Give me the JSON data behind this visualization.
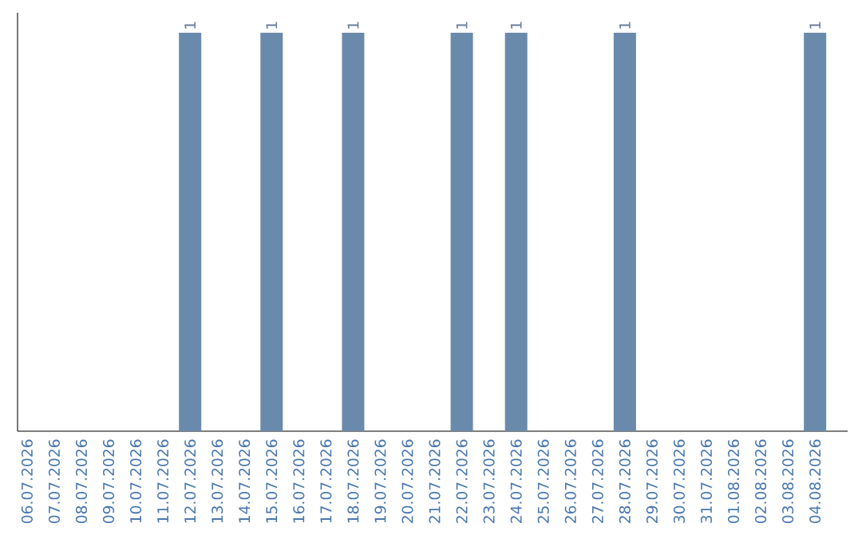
{
  "chart_data": {
    "type": "bar",
    "categories": [
      "06.07.2026",
      "07.07.2026",
      "08.07.2026",
      "09.07.2026",
      "10.07.2026",
      "11.07.2026",
      "12.07.2026",
      "13.07.2026",
      "14.07.2026",
      "15.07.2026",
      "16.07.2026",
      "17.07.2026",
      "18.07.2026",
      "19.07.2026",
      "20.07.2026",
      "21.07.2026",
      "22.07.2026",
      "23.07.2026",
      "24.07.2026",
      "25.07.2026",
      "26.07.2026",
      "27.07.2026",
      "28.07.2026",
      "29.07.2026",
      "30.07.2026",
      "31.07.2026",
      "01.08.2026",
      "02.08.2026",
      "03.08.2026",
      "04.08.2026"
    ],
    "values": [
      0,
      0,
      0,
      0,
      0,
      0,
      1,
      0,
      0,
      1,
      0,
      0,
      1,
      0,
      0,
      0,
      1,
      0,
      1,
      0,
      0,
      0,
      1,
      0,
      0,
      0,
      0,
      0,
      0,
      1
    ],
    "value_labels": [
      null,
      null,
      null,
      null,
      null,
      null,
      "1",
      null,
      null,
      "1",
      null,
      null,
      "1",
      null,
      null,
      null,
      "1",
      null,
      "1",
      null,
      null,
      null,
      "1",
      null,
      null,
      null,
      null,
      null,
      null,
      "1"
    ],
    "color": "#6a8aab",
    "ylim": [
      0,
      1.05
    ],
    "tick_labels": "x"
  }
}
